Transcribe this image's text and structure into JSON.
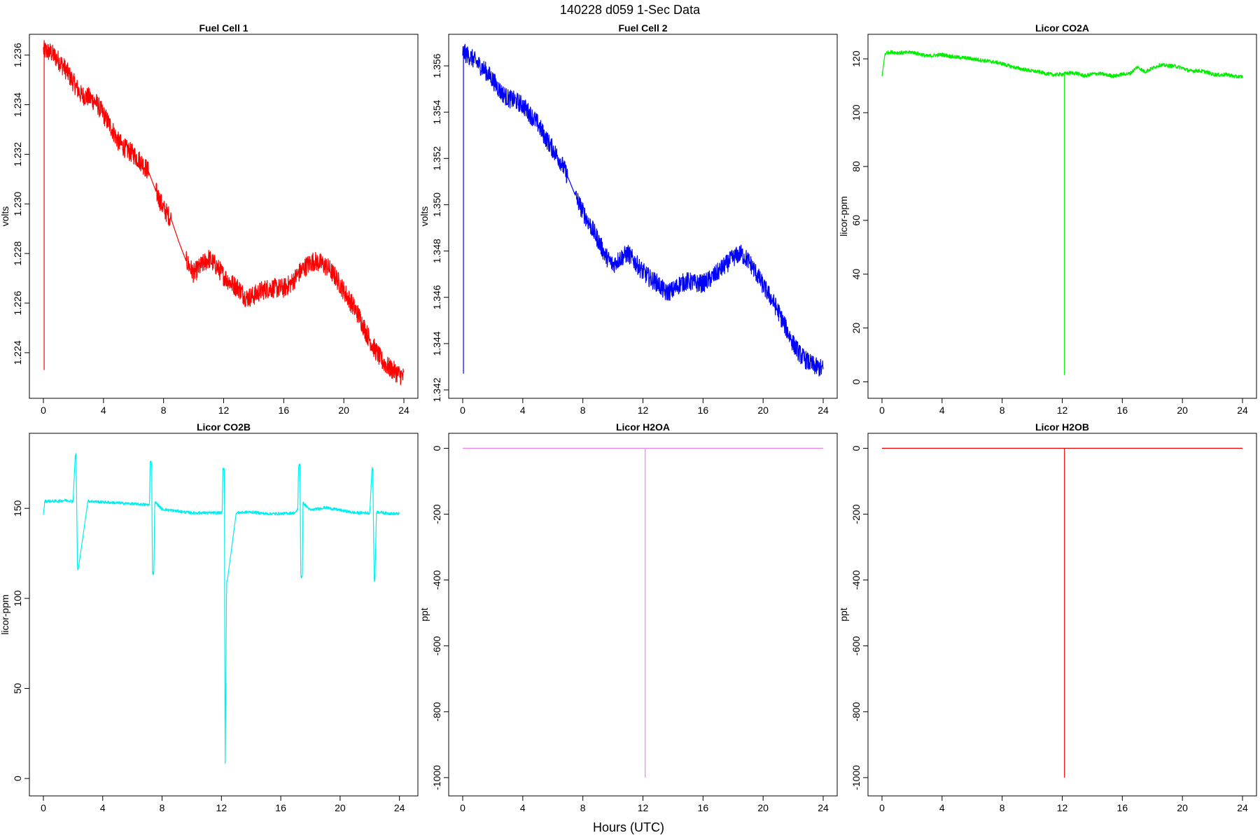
{
  "figure": {
    "title": "140228   d059   1-Sec Data",
    "xlabel": "Hours (UTC)"
  },
  "chart_data": [
    {
      "type": "line",
      "title": "Fuel Cell 1",
      "ylabel": "volts",
      "color": "#ff0000",
      "xlim": [
        0,
        24
      ],
      "ylim": [
        1.2225,
        1.2365
      ],
      "xticks": [
        "0",
        "4",
        "8",
        "12",
        "16",
        "20",
        "24"
      ],
      "yticks": [
        "1.224",
        "1.226",
        "1.228",
        "1.230",
        "1.232",
        "1.234",
        "1.236"
      ],
      "band": 0.0004,
      "x": [
        0,
        0.5,
        1,
        1.5,
        2,
        2.5,
        3,
        3.5,
        4,
        4.5,
        5,
        5.5,
        6,
        6.5,
        7,
        7.5,
        8,
        8.5,
        9,
        9.5,
        10,
        10.5,
        11,
        11.5,
        12,
        12.5,
        13,
        13.5,
        14,
        14.5,
        15,
        15.5,
        16,
        16.5,
        17,
        17.5,
        18,
        18.5,
        19,
        19.5,
        20,
        20.5,
        21,
        21.5,
        22,
        22.5,
        23,
        23.5,
        24
      ],
      "y": [
        1.2362,
        1.2361,
        1.2358,
        1.2354,
        1.2349,
        1.2344,
        1.2343,
        1.2341,
        1.2336,
        1.2331,
        1.2325,
        1.2322,
        1.232,
        1.2317,
        1.2313,
        1.2305,
        1.2298,
        1.2294,
        1.2285,
        1.2277,
        1.2272,
        1.2275,
        1.2278,
        1.2275,
        1.2271,
        1.2268,
        1.2266,
        1.2262,
        1.2263,
        1.2265,
        1.2266,
        1.2266,
        1.2266,
        1.2268,
        1.2272,
        1.2275,
        1.2277,
        1.2276,
        1.2274,
        1.227,
        1.2265,
        1.226,
        1.2255,
        1.2248,
        1.2242,
        1.2237,
        1.2234,
        1.2232,
        1.223
      ],
      "spike": {
        "x": 0.05,
        "y": 1.2233
      }
    },
    {
      "type": "line",
      "title": "Fuel Cell 2",
      "ylabel": "volts",
      "color": "#0000ff",
      "xlim": [
        0,
        24
      ],
      "ylim": [
        1.342,
        1.357
      ],
      "xticks": [
        "0",
        "4",
        "8",
        "12",
        "16",
        "20",
        "24"
      ],
      "yticks": [
        "1.342",
        "1.344",
        "1.346",
        "1.348",
        "1.350",
        "1.352",
        "1.354",
        "1.356"
      ],
      "band": 0.0004,
      "x": [
        0,
        0.5,
        1,
        1.5,
        2,
        2.5,
        3,
        3.5,
        4,
        4.5,
        5,
        5.5,
        6,
        6.5,
        7,
        7.5,
        8,
        8.5,
        9,
        9.5,
        10,
        10.5,
        11,
        11.5,
        12,
        12.5,
        13,
        13.5,
        14,
        14.5,
        15,
        15.5,
        16,
        16.5,
        17,
        17.5,
        18,
        18.5,
        19,
        19.5,
        20,
        20.5,
        21,
        21.5,
        22,
        22.5,
        23,
        23.5,
        24
      ],
      "y": [
        1.3566,
        1.3564,
        1.3561,
        1.3558,
        1.3554,
        1.3549,
        1.3546,
        1.3545,
        1.3543,
        1.3539,
        1.3535,
        1.3529,
        1.3524,
        1.3519,
        1.3512,
        1.3504,
        1.3497,
        1.3491,
        1.3485,
        1.3478,
        1.3474,
        1.3477,
        1.3479,
        1.3475,
        1.3471,
        1.3468,
        1.3466,
        1.3462,
        1.3463,
        1.3466,
        1.3467,
        1.3466,
        1.3466,
        1.3468,
        1.3471,
        1.3474,
        1.3477,
        1.3479,
        1.3476,
        1.3471,
        1.3465,
        1.346,
        1.3454,
        1.3447,
        1.344,
        1.3435,
        1.3432,
        1.343,
        1.3429
      ],
      "spike": {
        "x": 0.05,
        "y": 1.3427
      }
    },
    {
      "type": "line",
      "title": "Licor CO2A",
      "ylabel": "licor-ppm",
      "color": "#00ee00",
      "xlim": [
        0,
        24
      ],
      "ylim": [
        -3,
        126
      ],
      "xticks": [
        "0",
        "4",
        "8",
        "12",
        "16",
        "20",
        "24"
      ],
      "yticks": [
        "0",
        "20",
        "40",
        "60",
        "80",
        "100",
        "120"
      ],
      "band": 0.7,
      "x": [
        0,
        0.2,
        0.5,
        1,
        1.5,
        2,
        2.5,
        3,
        3.5,
        4,
        4.5,
        5,
        5.5,
        6,
        6.5,
        7,
        7.5,
        8,
        8.5,
        9,
        9.5,
        10,
        10.5,
        11,
        11.5,
        12,
        12.5,
        13,
        13.5,
        14,
        14.5,
        15,
        15.5,
        16,
        16.5,
        17,
        17.5,
        18,
        18.5,
        19,
        19.5,
        20,
        20.5,
        21,
        21.5,
        22,
        22.5,
        23,
        23.5,
        24
      ],
      "y": [
        113.5,
        122,
        122.5,
        122.3,
        122.2,
        122.5,
        121.8,
        121,
        121.3,
        121.6,
        121,
        120.6,
        120.4,
        120,
        119.6,
        119.2,
        118.8,
        118.2,
        117.3,
        116.6,
        116,
        115.5,
        115.1,
        114.4,
        114.1,
        114.3,
        114.8,
        114.6,
        113.6,
        114.4,
        114.5,
        114,
        113.6,
        114.3,
        114.5,
        117,
        115.2,
        116.5,
        117.7,
        117.5,
        117.3,
        116.6,
        115.5,
        115.6,
        115.3,
        114.3,
        114,
        114.2,
        113.4,
        113.4
      ],
      "spike": {
        "x": 12.15,
        "y": 2.5
      }
    },
    {
      "type": "line",
      "title": "Licor CO2B",
      "ylabel": "licor-ppm",
      "color": "#00eeee",
      "xlim": [
        0,
        24.3
      ],
      "ylim": [
        -5,
        187
      ],
      "xticks": [
        "0",
        "4",
        "8",
        "12",
        "16",
        "20",
        "24"
      ],
      "yticks": [
        "0",
        "50",
        "100",
        "150"
      ],
      "band": 0.8,
      "x": [
        0,
        0.1,
        0.5,
        1,
        1.5,
        1.95,
        2.0,
        2.15,
        2.2,
        2.3,
        2.35,
        3,
        4,
        5,
        6,
        7,
        7.15,
        7.2,
        7.3,
        7.35,
        7.45,
        7.5,
        7.6,
        8,
        9,
        10,
        11,
        12,
        12.05,
        12.1,
        12.2,
        12.25,
        12.35,
        12.4,
        13,
        14,
        15,
        16,
        17,
        17.15,
        17.2,
        17.3,
        17.35,
        17.45,
        17.5,
        18,
        19,
        20,
        21,
        22,
        22.15,
        22.2,
        22.3,
        22.35,
        22.45,
        22.5,
        23,
        23.5,
        24
      ],
      "y": [
        147,
        154,
        154,
        154,
        154.5,
        154,
        154,
        180,
        180,
        116,
        116,
        154,
        153.5,
        153,
        152.5,
        152,
        152,
        176,
        176,
        114,
        114,
        153,
        153,
        149.5,
        148.5,
        147.5,
        147.5,
        147.5,
        147.5,
        172,
        172,
        0.5,
        110,
        110,
        147.5,
        148,
        147,
        147,
        147.5,
        150,
        174,
        174,
        112,
        112,
        153,
        149,
        150.5,
        149,
        147.5,
        147.5,
        172,
        172,
        110,
        110,
        148,
        148,
        147.5,
        147,
        147
      ]
    },
    {
      "type": "line",
      "title": "Licor H2OA",
      "ylabel": "ppt",
      "color": "#ee82ee",
      "xlim": [
        0,
        24
      ],
      "ylim": [
        -1030,
        20
      ],
      "xticks": [
        "0",
        "4",
        "8",
        "12",
        "16",
        "20",
        "24"
      ],
      "yticks": [
        "-1000",
        "-800",
        "-600",
        "-400",
        "-200",
        "0"
      ],
      "band": 0,
      "x": [
        0,
        24
      ],
      "y": [
        0,
        0
      ],
      "spike": {
        "x": 12.15,
        "y": -1000,
        "top": 0
      }
    },
    {
      "type": "line",
      "title": "Licor H2OB",
      "ylabel": "ppt",
      "color": "#ee0000",
      "xlim": [
        0,
        24
      ],
      "ylim": [
        -1030,
        20
      ],
      "xticks": [
        "0",
        "4",
        "8",
        "12",
        "16",
        "20",
        "24"
      ],
      "yticks": [
        "-1000",
        "-800",
        "-600",
        "-400",
        "-200",
        "0"
      ],
      "band": 0,
      "x": [
        0,
        24
      ],
      "y": [
        0,
        0
      ],
      "spike": {
        "x": 12.15,
        "y": -1000,
        "top": 0
      }
    }
  ]
}
